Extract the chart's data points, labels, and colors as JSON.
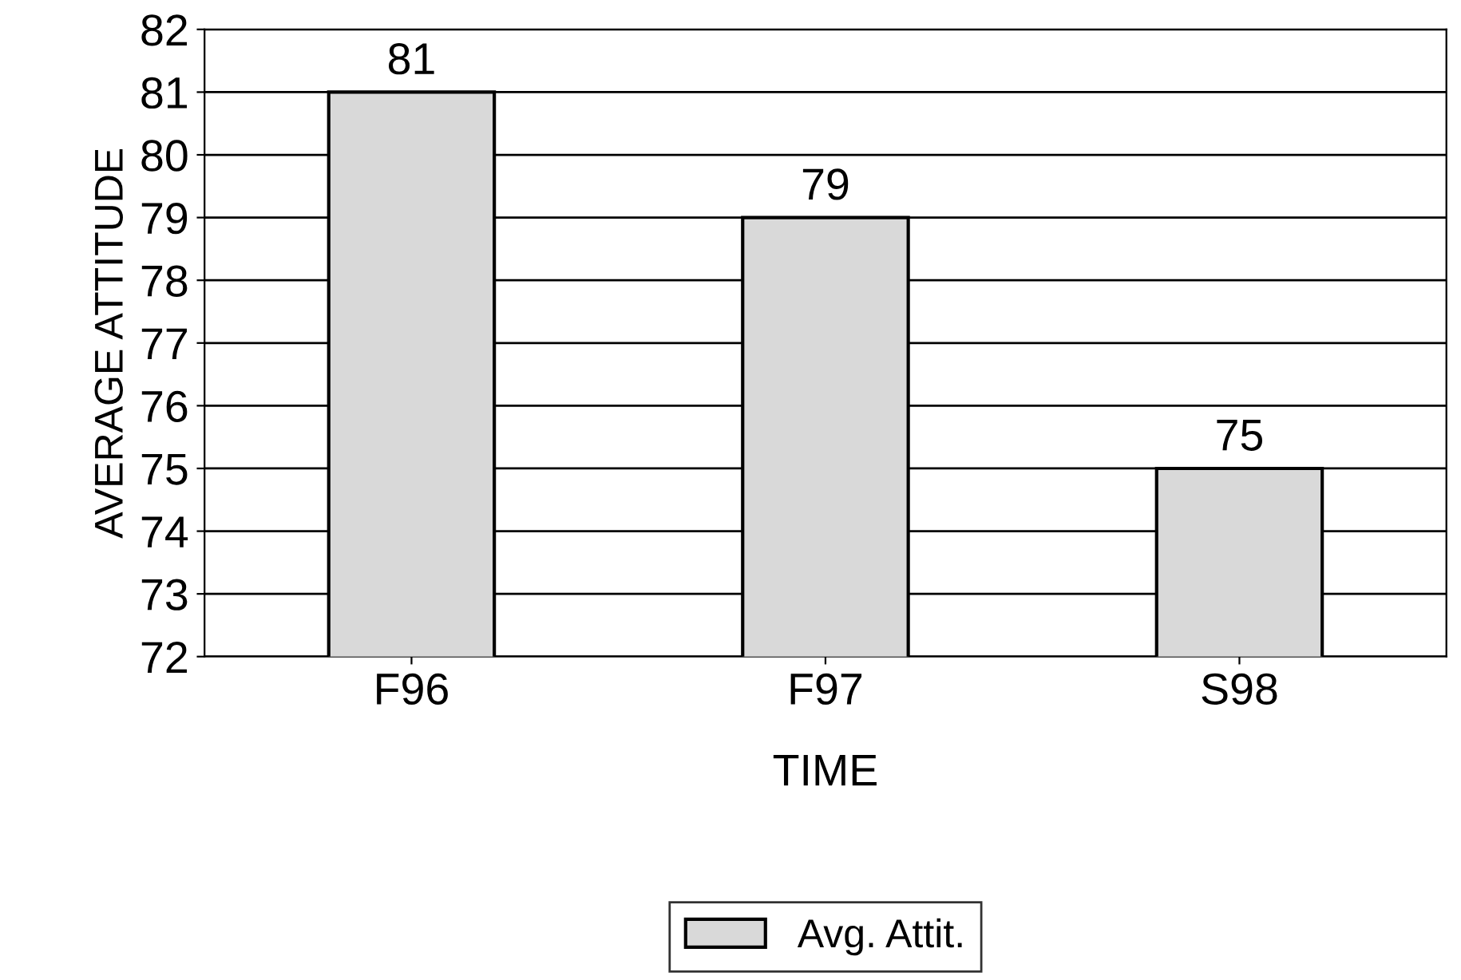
{
  "chart_data": {
    "type": "bar",
    "xlabel": "TIME",
    "ylabel": "AVERAGE ATTITUDE",
    "categories": [
      "F96",
      "F97",
      "S98"
    ],
    "series": [
      {
        "name": "Avg. Attit.",
        "color": "#d9d9d9",
        "values": [
          81,
          79,
          75
        ]
      }
    ],
    "ylim": [
      72,
      82
    ],
    "yticks": [
      72,
      73,
      74,
      75,
      76,
      77,
      78,
      79,
      80,
      81,
      82
    ],
    "grid": "y",
    "legend": "bottom",
    "data_labels": true
  }
}
